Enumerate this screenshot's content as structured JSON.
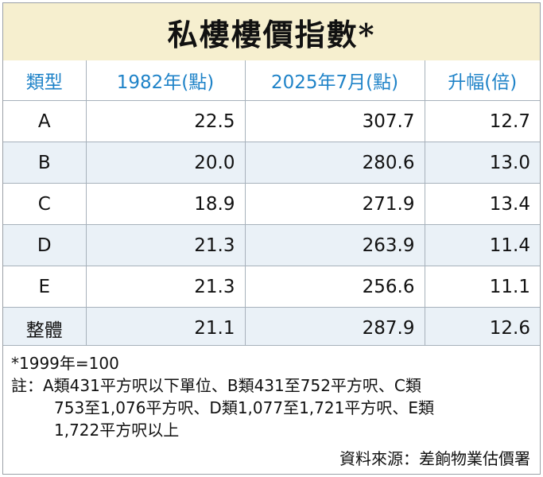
{
  "title": "私樓樓價指數*",
  "table": {
    "headers": [
      "類型",
      "1982年(點)",
      "2025年7月(點)",
      "升幅(倍)"
    ],
    "rows": [
      {
        "type": "A",
        "y1982": "22.5",
        "y2025": "307.7",
        "rise": "12.7"
      },
      {
        "type": "B",
        "y1982": "20.0",
        "y2025": "280.6",
        "rise": "13.0"
      },
      {
        "type": "C",
        "y1982": "18.9",
        "y2025": "271.9",
        "rise": "13.4"
      },
      {
        "type": "D",
        "y1982": "21.3",
        "y2025": "263.9",
        "rise": "11.4"
      },
      {
        "type": "E",
        "y1982": "21.3",
        "y2025": "256.6",
        "rise": "11.1"
      },
      {
        "type": "整體",
        "y1982": "21.1",
        "y2025": "287.9",
        "rise": "12.6"
      }
    ]
  },
  "notes": {
    "base": "*1999年=100",
    "line1": "註：A類431平方呎以下單位、B類431至752平方呎、C類",
    "line2": "753至1,076平方呎、D類1,077至1,721平方呎、E類",
    "line3": "1,722平方呎以上",
    "source": "資料來源：差餉物業估價署"
  },
  "colors": {
    "header_text": "#1f83c8",
    "title_bg": "#f6efcf",
    "stripe_bg": "#eaf1f7"
  }
}
